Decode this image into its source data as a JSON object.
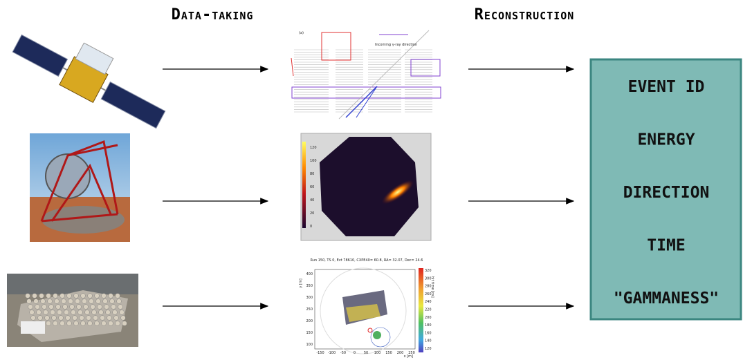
{
  "header": {
    "left_title": "Data-taking",
    "right_title": "Reconstruction"
  },
  "panels": [
    {
      "label": "(a)",
      "caption": "Incoming γ-ray direction"
    },
    {
      "colorbar_ticks": [
        "120",
        "100",
        "80",
        "60",
        "40",
        "20",
        "0"
      ]
    },
    {
      "title": "Run 150, TS 0, Evt 78610, CXPE40= 60.8, RA= 32.07, Dec= 24.6",
      "y_label": "y [m]",
      "x_label": "x [m]",
      "colorbar_label": "hit time [ns]",
      "y_ticks": [
        "400",
        "350",
        "300",
        "250",
        "200",
        "150",
        "100"
      ],
      "x_ticks": [
        "-150",
        "-100",
        "-50",
        "0",
        "50",
        "100",
        "150",
        "200",
        "250"
      ],
      "colorbar_ticks": [
        "320",
        "300",
        "280",
        "260",
        "240",
        "220",
        "200",
        "180",
        "160",
        "140",
        "120"
      ]
    }
  ],
  "box": {
    "items": [
      "EVENT ID",
      "ENERGY",
      "DIRECTION",
      "TIME",
      "\"GAMMANESS\""
    ]
  }
}
